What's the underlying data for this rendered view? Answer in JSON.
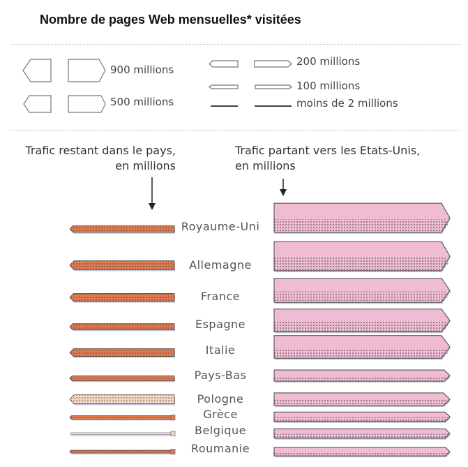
{
  "title": "Nombre de pages Web mensuelles* visitées",
  "legend": {
    "items": [
      {
        "label": "900 millions",
        "value": 900
      },
      {
        "label": "500 millions",
        "value": 500
      },
      {
        "label": "200 millions",
        "value": 200
      },
      {
        "label": "100 millions",
        "value": 100
      },
      {
        "label": "moins de 2 millions",
        "value": 2
      }
    ]
  },
  "headers": {
    "left_line1": "Trafic restant dans le pays,",
    "left_line2": "en millions",
    "right_line1": "Trafic partant vers les Etats-Unis,",
    "right_line2": "en millions"
  },
  "colors": {
    "domestic": "#e07a50",
    "domestic_light": "#f6d6c0",
    "to_us": "#f0bcd4",
    "outline": "#444444",
    "shadow": "#9aa3c8"
  },
  "countries": [
    {
      "name": "Royaume-Uni",
      "domestic": 100,
      "to_us": 1200
    },
    {
      "name": "Allemagne",
      "domestic": 200,
      "to_us": 1200
    },
    {
      "name": "France",
      "domestic": 150,
      "to_us": 800
    },
    {
      "name": "Espagne",
      "domestic": 80,
      "to_us": 700
    },
    {
      "name": "Italie",
      "domestic": 150,
      "to_us": 700
    },
    {
      "name": "Pays-Bas",
      "domestic": 50,
      "to_us": 150
    },
    {
      "name": "Pologne",
      "domestic": 200,
      "to_us": 200
    },
    {
      "name": "Grèce",
      "domestic": 20,
      "to_us": 100
    },
    {
      "name": "Belgique",
      "domestic": 2,
      "to_us": 100
    },
    {
      "name": "Roumanie",
      "domestic": 10,
      "to_us": 80
    }
  ]
}
